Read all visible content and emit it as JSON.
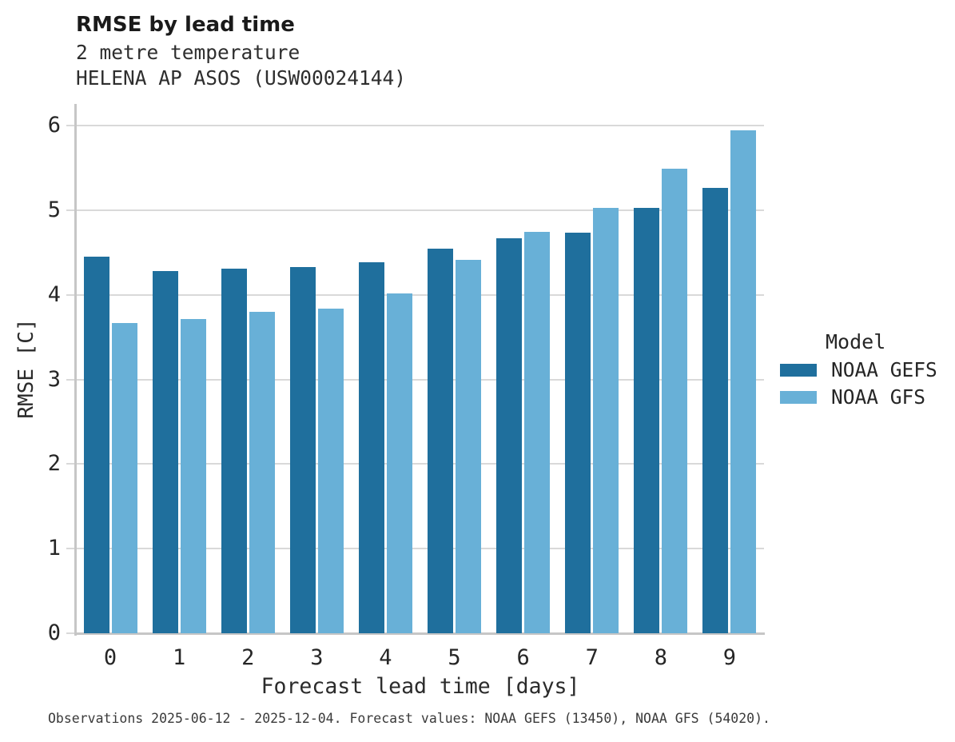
{
  "title": "RMSE by lead time",
  "subtitle_lines": [
    "2 metre temperature",
    "HELENA AP ASOS (USW00024144)"
  ],
  "footer": "Observations 2025-06-12 - 2025-12-04. Forecast values: NOAA GEFS (13450), NOAA GFS (54020).",
  "colors": {
    "gefs_dark_blue": "#1f6f9d",
    "gfs_light_blue": "#68b0d7",
    "gridline": "#d9d9d9",
    "spine": "#c6c6c6",
    "title_text": "#1a1a1a",
    "tick_text": "#262626",
    "footer_text": "#3a3a3a"
  },
  "legend": {
    "title": "Model",
    "items": [
      {
        "label": "NOAA GEFS",
        "color": "#1f6f9d"
      },
      {
        "label": "NOAA GFS",
        "color": "#68b0d7"
      }
    ]
  },
  "chart_data": {
    "type": "bar",
    "title": "RMSE by lead time",
    "subtitle": "2 metre temperature - HELENA AP ASOS (USW00024144)",
    "categories": [
      0,
      1,
      2,
      3,
      4,
      5,
      6,
      7,
      8,
      9
    ],
    "series": [
      {
        "name": "NOAA GEFS",
        "color": "#1f6f9d",
        "values": [
          4.45,
          4.28,
          4.31,
          4.33,
          4.39,
          4.55,
          4.67,
          4.74,
          5.03,
          5.27
        ]
      },
      {
        "name": "NOAA GFS",
        "color": "#68b0d7",
        "values": [
          3.67,
          3.72,
          3.8,
          3.84,
          4.02,
          4.42,
          4.75,
          5.03,
          5.49,
          5.95
        ]
      }
    ],
    "xlabel": "Forecast lead time [days]",
    "ylabel": "RMSE [C]",
    "ylim": [
      0,
      6.26
    ],
    "yticks": [
      0,
      1,
      2,
      3,
      4,
      5,
      6
    ],
    "grid": true,
    "legend_title": "Model",
    "legend_position": "right-outside"
  }
}
